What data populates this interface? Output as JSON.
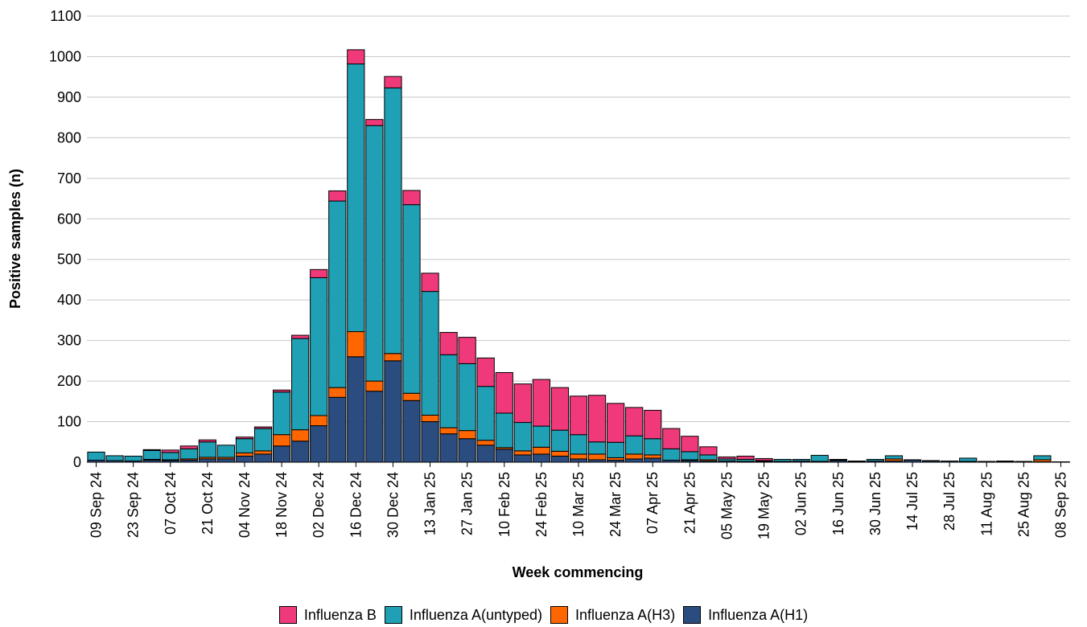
{
  "chart_data": {
    "type": "bar",
    "stacked": true,
    "xlabel": "Week commencing",
    "ylabel": "Positive samples (n)",
    "ylim": [
      0,
      1100
    ],
    "yticks": [
      0,
      100,
      200,
      300,
      400,
      500,
      600,
      700,
      800,
      900,
      1000,
      1100
    ],
    "grid": true,
    "legend_position": "bottom",
    "categories": [
      "09 Sep 24",
      "16 Sep 24",
      "23 Sep 24",
      "30 Sep 24",
      "07 Oct 24",
      "14 Oct 24",
      "21 Oct 24",
      "28 Oct 24",
      "04 Nov 24",
      "11 Nov 24",
      "18 Nov 24",
      "25 Nov 24",
      "02 Dec 24",
      "09 Dec 24",
      "16 Dec 24",
      "23 Dec 24",
      "30 Dec 24",
      "06 Jan 25",
      "13 Jan 25",
      "20 Jan 25",
      "27 Jan 25",
      "03 Feb 25",
      "10 Feb 25",
      "17 Feb 25",
      "24 Feb 25",
      "03 Mar 25",
      "10 Mar 25",
      "17 Mar 25",
      "24 Mar 25",
      "31 Mar 25",
      "07 Apr 25",
      "14 Apr 25",
      "21 Apr 25",
      "28 Apr 25",
      "05 May 25",
      "12 May 25",
      "19 May 25",
      "26 May 25",
      "02 Jun 25",
      "09 Jun 25",
      "16 Jun 25",
      "23 Jun 25",
      "30 Jun 25",
      "07 Jul 25",
      "14 Jul 25",
      "21 Jul 25",
      "28 Jul 25",
      "04 Aug 25",
      "11 Aug 25",
      "18 Aug 25",
      "25 Aug 25",
      "01 Sep 25",
      "08 Sep 25"
    ],
    "tick_labels": [
      "09 Sep 24",
      "23 Sep 24",
      "07 Oct 24",
      "21 Oct 24",
      "04 Nov 24",
      "18 Nov 24",
      "02 Dec 24",
      "16 Dec 24",
      "30 Dec 24",
      "13 Jan 25",
      "27 Jan 25",
      "10 Feb 25",
      "24 Feb 25",
      "10 Mar 25",
      "24 Mar 25",
      "07 Apr 25",
      "21 Apr 25",
      "05 May 25",
      "19 May 25",
      "02 Jun 25",
      "16 Jun 25",
      "30 Jun 25",
      "14 Jul 25",
      "28 Jul 25",
      "11 Aug 25",
      "25 Aug 25",
      "08 Sep 25"
    ],
    "series": [
      {
        "name": "Influenza A(H1)",
        "color": "#2B4C7E",
        "values": [
          5,
          4,
          3,
          5,
          4,
          5,
          8,
          8,
          15,
          20,
          40,
          52,
          90,
          160,
          260,
          175,
          250,
          152,
          100,
          70,
          58,
          42,
          32,
          18,
          20,
          15,
          8,
          6,
          5,
          8,
          10,
          5,
          4,
          3,
          3,
          2,
          2,
          2,
          3,
          2,
          4,
          1,
          3,
          3,
          5,
          3,
          3,
          2,
          2,
          2,
          2,
          1,
          1
        ]
      },
      {
        "name": "Influenza A(H3)",
        "color": "#FF6600",
        "values": [
          0,
          0,
          0,
          2,
          2,
          3,
          4,
          4,
          8,
          8,
          28,
          28,
          25,
          24,
          62,
          25,
          18,
          18,
          16,
          15,
          20,
          12,
          4,
          10,
          17,
          12,
          12,
          14,
          6,
          12,
          8,
          0,
          2,
          3,
          0,
          0,
          0,
          0,
          0,
          0,
          1,
          0,
          0,
          5,
          1,
          0,
          0,
          0,
          0,
          0,
          0,
          5,
          0
        ]
      },
      {
        "name": "Influenza A(untyped)",
        "color": "#20A0B5",
        "values": [
          20,
          12,
          12,
          22,
          18,
          25,
          38,
          30,
          35,
          55,
          105,
          225,
          340,
          460,
          660,
          630,
          655,
          465,
          305,
          180,
          165,
          133,
          85,
          70,
          52,
          52,
          48,
          30,
          38,
          45,
          40,
          28,
          20,
          12,
          5,
          5,
          2,
          5,
          4,
          15,
          2,
          2,
          4,
          8,
          0,
          1,
          0,
          8,
          0,
          1,
          0,
          10,
          0
        ]
      },
      {
        "name": "Influenza B",
        "color": "#F0397A",
        "values": [
          0,
          0,
          0,
          2,
          6,
          7,
          5,
          0,
          4,
          4,
          5,
          8,
          20,
          25,
          35,
          15,
          28,
          35,
          45,
          55,
          65,
          70,
          100,
          95,
          115,
          105,
          95,
          115,
          96,
          70,
          70,
          50,
          38,
          20,
          5,
          8,
          5,
          0,
          0,
          0,
          0,
          0,
          0,
          0,
          0,
          0,
          0,
          0,
          0,
          0,
          0,
          0,
          0
        ]
      }
    ]
  },
  "legend": {
    "items": [
      {
        "label": "Influenza B",
        "color": "#F0397A"
      },
      {
        "label": "Influenza A(untyped)",
        "color": "#20A0B5"
      },
      {
        "label": "Influenza A(H3)",
        "color": "#FF6600"
      },
      {
        "label": "Influenza A(H1)",
        "color": "#2B4C7E"
      }
    ]
  }
}
